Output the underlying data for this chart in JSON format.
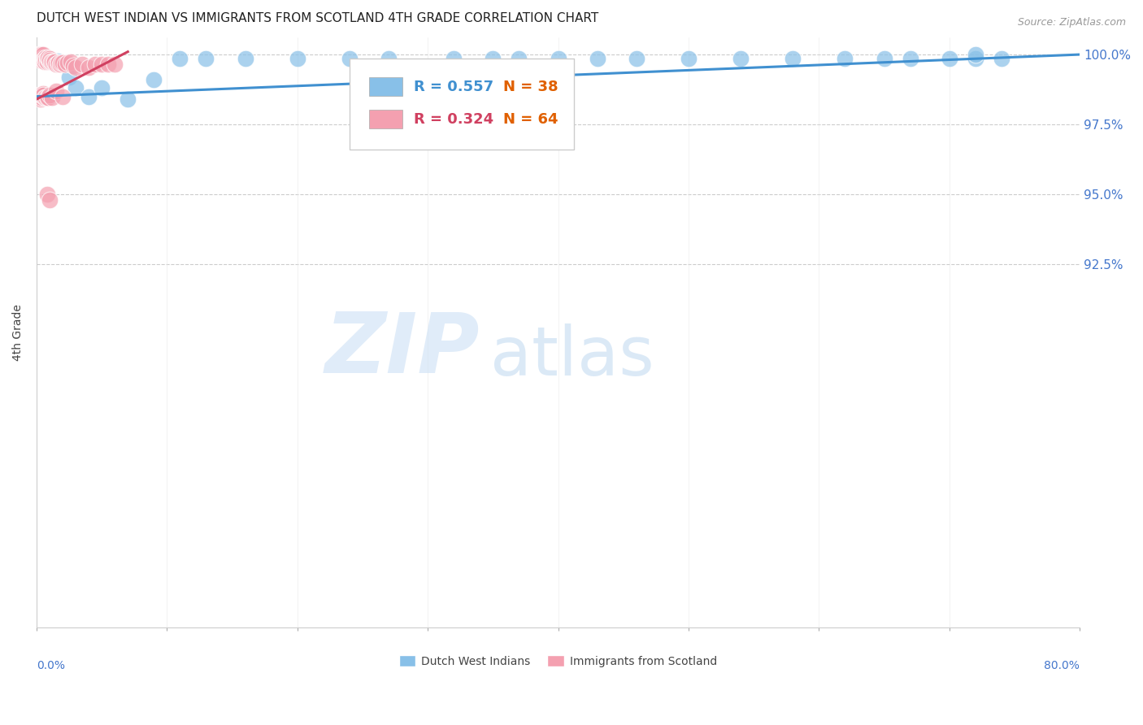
{
  "title": "DUTCH WEST INDIAN VS IMMIGRANTS FROM SCOTLAND 4TH GRADE CORRELATION CHART",
  "source": "Source: ZipAtlas.com",
  "ylabel": "4th Grade",
  "legend_blue_r": "R = 0.557",
  "legend_blue_n": "N = 38",
  "legend_pink_r": "R = 0.324",
  "legend_pink_n": "N = 64",
  "blue_color": "#88c0e8",
  "pink_color": "#f4a0b0",
  "blue_line_color": "#4090d0",
  "pink_line_color": "#d04060",
  "r_n_color_r_blue": "#4090d0",
  "r_n_color_n_blue": "#e06000",
  "r_n_color_r_pink": "#d04060",
  "r_n_color_n_pink": "#e06000",
  "title_color": "#222222",
  "source_color": "#999999",
  "axis_label_color": "#4477cc",
  "grid_color": "#cccccc",
  "xlim": [
    0.0,
    0.8
  ],
  "ylim": [
    0.795,
    1.006
  ],
  "ytick_vals": [
    1.0,
    0.975,
    0.95,
    0.925,
    0.8
  ],
  "ytick_labels": [
    "100.0%",
    "97.5%",
    "95.0%",
    "92.5%",
    ""
  ],
  "blue_x": [
    0.002,
    0.003,
    0.004,
    0.005,
    0.006,
    0.007,
    0.009,
    0.012,
    0.016,
    0.02,
    0.025,
    0.03,
    0.04,
    0.05,
    0.07,
    0.09,
    0.11,
    0.13,
    0.16,
    0.2,
    0.24,
    0.27,
    0.32,
    0.35,
    0.37,
    0.4,
    0.43,
    0.46,
    0.5,
    0.54,
    0.58,
    0.62,
    0.65,
    0.67,
    0.7,
    0.72,
    0.74,
    0.72
  ],
  "blue_y": [
    0.999,
    0.9985,
    0.999,
    0.9985,
    0.999,
    0.998,
    0.9985,
    0.998,
    0.9978,
    0.997,
    0.992,
    0.988,
    0.985,
    0.988,
    0.984,
    0.991,
    0.9985,
    0.9985,
    0.9985,
    0.9985,
    0.9985,
    0.9985,
    0.9985,
    0.9985,
    0.9985,
    0.9985,
    0.9985,
    0.9985,
    0.9985,
    0.9985,
    0.9985,
    0.9985,
    0.9985,
    0.9985,
    0.9985,
    0.9985,
    0.9985,
    1.0
  ],
  "pink_x": [
    0.001,
    0.001,
    0.002,
    0.002,
    0.002,
    0.003,
    0.003,
    0.003,
    0.004,
    0.004,
    0.004,
    0.005,
    0.005,
    0.005,
    0.005,
    0.006,
    0.006,
    0.007,
    0.007,
    0.008,
    0.008,
    0.009,
    0.009,
    0.01,
    0.01,
    0.01,
    0.011,
    0.012,
    0.013,
    0.014,
    0.015,
    0.016,
    0.017,
    0.018,
    0.019,
    0.02,
    0.022,
    0.024,
    0.026,
    0.028,
    0.03,
    0.035,
    0.04,
    0.045,
    0.05,
    0.055,
    0.06,
    0.001,
    0.002,
    0.003,
    0.004,
    0.004,
    0.005,
    0.005,
    0.006,
    0.007,
    0.008,
    0.009,
    0.01,
    0.012,
    0.015,
    0.02,
    0.008,
    0.01
  ],
  "pink_y": [
    0.999,
    1.0,
    0.999,
    1.0,
    0.9985,
    0.999,
    1.0,
    0.998,
    0.999,
    1.0,
    0.9985,
    0.999,
    0.9985,
    1.0,
    0.998,
    0.9985,
    0.9975,
    0.999,
    0.998,
    0.9985,
    0.9975,
    0.9985,
    0.999,
    0.9985,
    0.9975,
    0.998,
    0.9975,
    0.9975,
    0.9975,
    0.9975,
    0.9965,
    0.9968,
    0.997,
    0.9965,
    0.997,
    0.997,
    0.9965,
    0.997,
    0.9975,
    0.996,
    0.9955,
    0.9965,
    0.9955,
    0.9965,
    0.9965,
    0.9965,
    0.9965,
    0.9855,
    0.9855,
    0.984,
    0.9845,
    0.9855,
    0.986,
    0.9855,
    0.9845,
    0.9845,
    0.9845,
    0.9845,
    0.9855,
    0.9845,
    0.987,
    0.985,
    0.95,
    0.948
  ],
  "blue_trend_x": [
    0.0,
    0.8
  ],
  "blue_trend_y": [
    0.985,
    1.0
  ],
  "pink_trend_x": [
    0.0,
    0.07
  ],
  "pink_trend_y": [
    0.984,
    1.001
  ]
}
